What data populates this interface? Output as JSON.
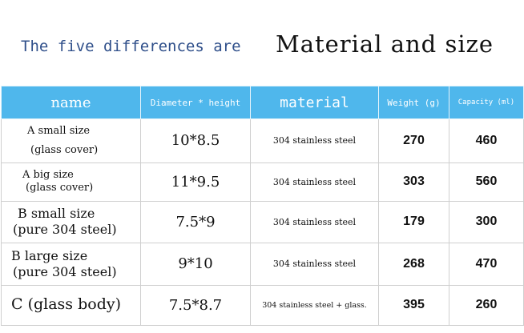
{
  "headline": {
    "lead": "The five differences are",
    "emphasis": "Material and size"
  },
  "table": {
    "headers": {
      "name": "name",
      "dimension": "Diameter * height",
      "material": "material",
      "weight": "Weight (g)",
      "capacity": "Capacity (ml)"
    },
    "rows": [
      {
        "name_l1": "A small size",
        "name_l2": "(glass cover)",
        "dimension": "10*8.5",
        "material": "304 stainless steel",
        "weight": "270",
        "capacity": "460"
      },
      {
        "name_l1": "A big size",
        "name_l2": "(glass cover)",
        "dimension": "11*9.5",
        "material": "304 stainless steel",
        "weight": "303",
        "capacity": "560"
      },
      {
        "name_l1": "B small size",
        "name_l2": "(pure 304 steel)",
        "dimension": "7.5*9",
        "material": "304 stainless steel",
        "weight": "179",
        "capacity": "300"
      },
      {
        "name_l1": "B large size",
        "name_l2": "(pure 304 steel)",
        "dimension": "9*10",
        "material": "304 stainless steel",
        "weight": "268",
        "capacity": "470"
      },
      {
        "name_l1": "C (glass body)",
        "name_l2": "",
        "dimension": "7.5*8.7",
        "material": "304 stainless steel + glass.",
        "weight": "395",
        "capacity": "260"
      }
    ]
  }
}
